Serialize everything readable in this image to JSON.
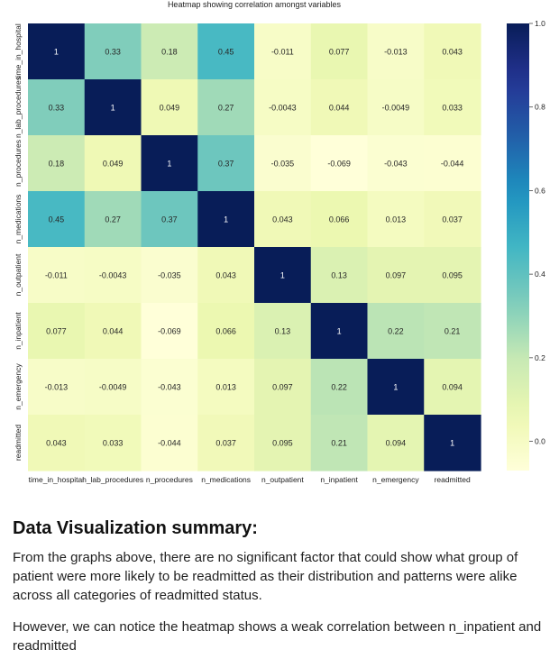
{
  "chart_data": {
    "type": "heatmap",
    "title": "Heatmap showing correlation amongst variables",
    "variables": [
      "time_in_hospital",
      "n_lab_procedures",
      "n_procedures",
      "n_medications",
      "n_outpatient",
      "n_inpatient",
      "n_emergency",
      "readmitted"
    ],
    "matrix": [
      [
        "1",
        "0.33",
        "0.18",
        "0.45",
        "-0.011",
        "0.077",
        "-0.013",
        "0.043"
      ],
      [
        "0.33",
        "1",
        "0.049",
        "0.27",
        "-0.0043",
        "0.044",
        "-0.0049",
        "0.033"
      ],
      [
        "0.18",
        "0.049",
        "1",
        "0.37",
        "-0.035",
        "-0.069",
        "-0.043",
        "-0.044"
      ],
      [
        "0.45",
        "0.27",
        "0.37",
        "1",
        "0.043",
        "0.066",
        "0.013",
        "0.037"
      ],
      [
        "-0.011",
        "-0.0043",
        "-0.035",
        "0.043",
        "1",
        "0.13",
        "0.097",
        "0.095"
      ],
      [
        "0.077",
        "0.044",
        "-0.069",
        "0.066",
        "0.13",
        "1",
        "0.22",
        "0.21"
      ],
      [
        "-0.013",
        "-0.0049",
        "-0.043",
        "0.013",
        "0.097",
        "0.22",
        "1",
        "0.094"
      ],
      [
        "0.043",
        "0.033",
        "-0.044",
        "0.037",
        "0.095",
        "0.21",
        "0.094",
        "1"
      ]
    ],
    "colorbar": {
      "min": -0.07,
      "max": 1.0,
      "ticks": [
        "1.0",
        "0.8",
        "0.6",
        "0.4",
        "0.2",
        "0.0"
      ],
      "colormap": "YlGnBu"
    }
  },
  "summary": {
    "heading": "Data Visualization summary:",
    "paragraph1": "From the graphs above, there are no significant factor that could show what group of patient were more likely to be readmitted as their distribution and patterns were alike across all categories of readmitted status.",
    "paragraph2": "However, we can notice the heatmap shows a weak correlation between n_inpatient and readmitted"
  }
}
